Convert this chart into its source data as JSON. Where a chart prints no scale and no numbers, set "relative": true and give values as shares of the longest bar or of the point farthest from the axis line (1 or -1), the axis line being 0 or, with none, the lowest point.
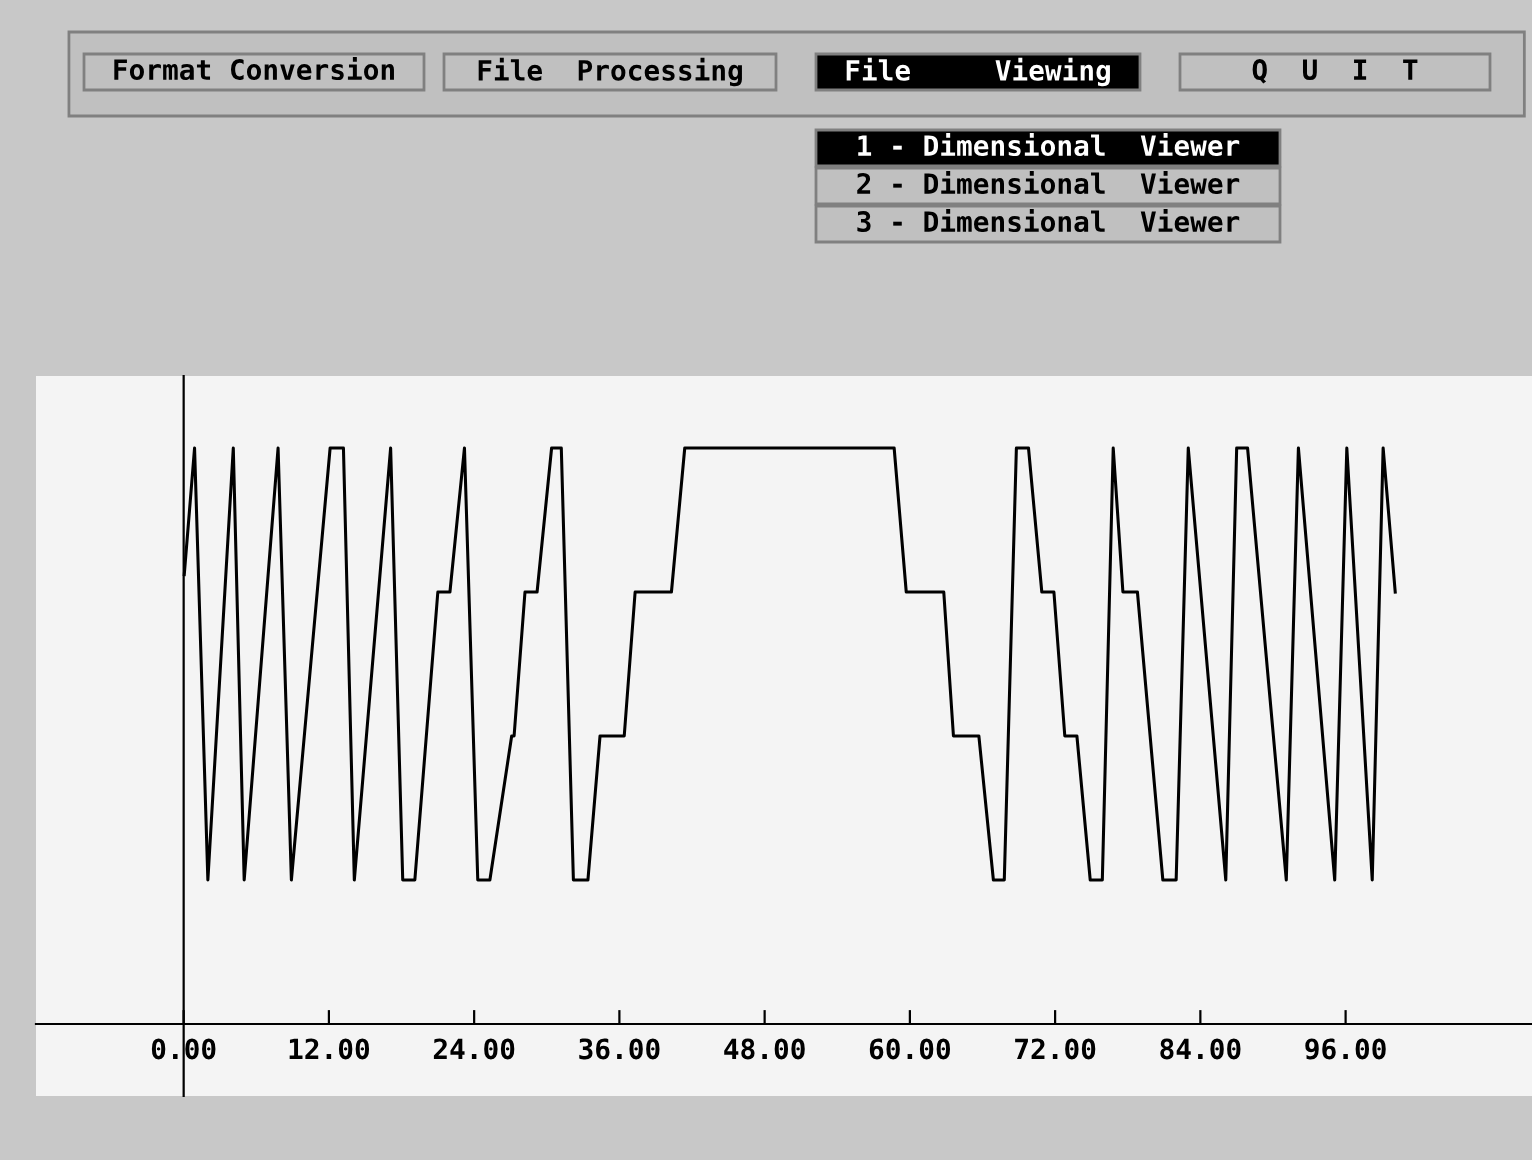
{
  "chart_data": {
    "type": "line",
    "relative": true,
    "xlim": [
      -12.2,
      111.4
    ],
    "xticks": [
      {
        "value": 0,
        "label": "0.00"
      },
      {
        "value": 12,
        "label": "12.00"
      },
      {
        "value": 24,
        "label": "24.00"
      },
      {
        "value": 36,
        "label": "36.00"
      },
      {
        "value": 48,
        "label": "48.00"
      },
      {
        "value": 60,
        "label": "60.00"
      },
      {
        "value": 72,
        "label": "72.00"
      },
      {
        "value": 84,
        "label": "84.00"
      },
      {
        "value": 96,
        "label": "96.00"
      }
    ],
    "series": [
      {
        "color": "#000000",
        "x": [
          0.05,
          0.9,
          2.0,
          4.1,
          5.0,
          7.8,
          8.9,
          12.1,
          13.2,
          14.1,
          17.1,
          18.1,
          19.1,
          21.0,
          22.0,
          23.2,
          24.3,
          25.3,
          27.1,
          27.3,
          28.2,
          29.2,
          30.4,
          31.2,
          32.2,
          33.4,
          34.4,
          36.4,
          37.3,
          40.3,
          41.4,
          58.7,
          59.7,
          62.8,
          63.6,
          65.7,
          66.9,
          67.8,
          68.8,
          69.8,
          70.9,
          71.9,
          72.8,
          73.8,
          74.9,
          75.9,
          76.8,
          77.6,
          78.8,
          80.9,
          82.0,
          83.0,
          86.1,
          87.0,
          87.9,
          91.1,
          92.1,
          95.1,
          96.1,
          98.2,
          99.1,
          100.1
        ],
        "values": [
          0.78,
          1.0,
          0.25,
          1.0,
          0.25,
          1.0,
          0.25,
          1.0,
          1.0,
          0.25,
          1.0,
          0.25,
          0.25,
          0.75,
          0.75,
          1.0,
          0.25,
          0.25,
          0.5,
          0.5,
          0.75,
          0.75,
          1.0,
          1.0,
          0.25,
          0.25,
          0.5,
          0.5,
          0.75,
          0.75,
          1.0,
          1.0,
          0.75,
          0.75,
          0.5,
          0.5,
          0.25,
          0.25,
          1.0,
          1.0,
          0.75,
          0.75,
          0.5,
          0.5,
          0.25,
          0.25,
          1.0,
          0.75,
          0.75,
          0.25,
          0.25,
          1.0,
          0.25,
          1.0,
          1.0,
          0.25,
          1.0,
          0.25,
          1.0,
          0.25,
          1.0,
          0.75
        ]
      }
    ],
    "annotations": [
      "Format Conversion",
      "File  Processing",
      "File     Viewing",
      "Q  U  I  T",
      "1 - Dimensional  Viewer",
      "2 - Dimensional  Viewer",
      "3 - Dimensional  Viewer"
    ]
  }
}
